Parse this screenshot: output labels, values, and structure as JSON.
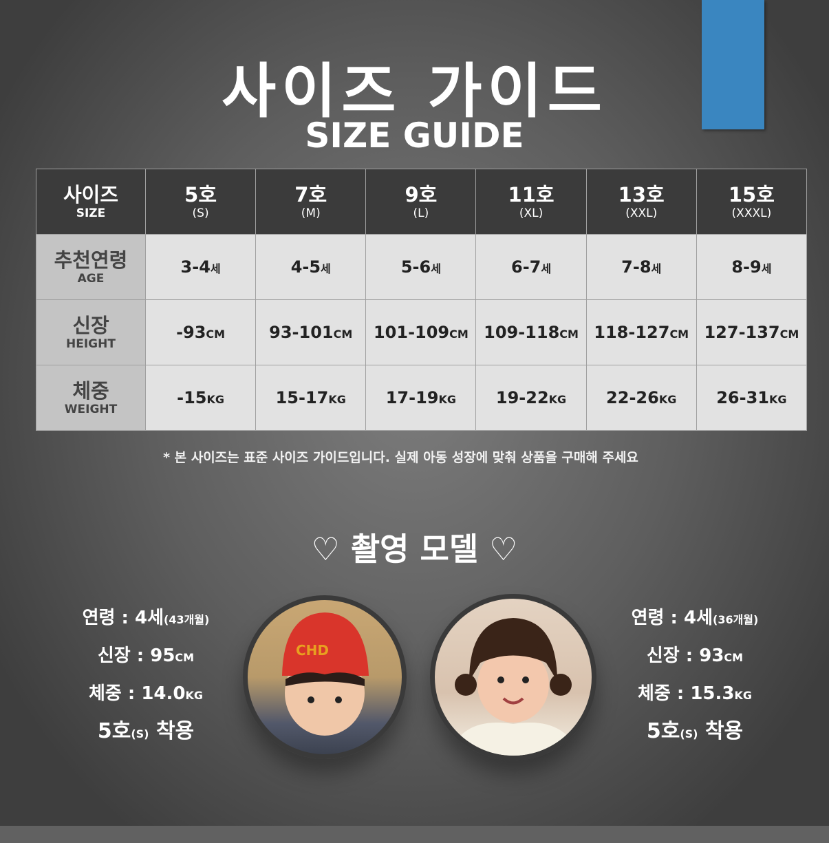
{
  "title": "사이즈 가이드",
  "subtitle": "SIZE GUIDE",
  "accent_color": "#3a86c0",
  "table": {
    "header": {
      "label": "사이즈",
      "sub": "SIZE"
    },
    "columns": [
      {
        "size": "5호",
        "code": "(S)"
      },
      {
        "size": "7호",
        "code": "(M)"
      },
      {
        "size": "9호",
        "code": "(L)"
      },
      {
        "size": "11호",
        "code": "(XL)"
      },
      {
        "size": "13호",
        "code": "(XXL)"
      },
      {
        "size": "15호",
        "code": "(XXXL)"
      }
    ],
    "rows": [
      {
        "label": "추천연령",
        "sub": "AGE",
        "unit": "세",
        "values": [
          "3-4",
          "4-5",
          "5-6",
          "6-7",
          "7-8",
          "8-9"
        ]
      },
      {
        "label": "신장",
        "sub": "HEIGHT",
        "unit": "CM",
        "values": [
          "-93",
          "93-101",
          "101-109",
          "109-118",
          "118-127",
          "127-137"
        ]
      },
      {
        "label": "체중",
        "sub": "WEIGHT",
        "unit": "KG",
        "values": [
          "-15",
          "15-17",
          "17-19",
          "19-22",
          "22-26",
          "26-31"
        ]
      }
    ]
  },
  "note": "* 본 사이즈는 표준 사이즈 가이드입니다. 실제 아동 성장에 맞춰 상품을 구매해 주세요",
  "models_title": "♡ 촬영 모델 ♡",
  "models": [
    {
      "age": "연령 : 4세",
      "months": "(43개월)",
      "height": "신장 : 95",
      "height_unit": "CM",
      "weight": "체중 : 14.0",
      "weight_unit": "KG",
      "size": "5호",
      "size_code": "(S)",
      "wear": "착용"
    },
    {
      "age": "연령 : 4세",
      "months": "(36개월)",
      "height": "신장 : 93",
      "height_unit": "CM",
      "weight": "체중 : 15.3",
      "weight_unit": "KG",
      "size": "5호",
      "size_code": "(S)",
      "wear": "착용"
    }
  ],
  "hat_letters": "CHD"
}
